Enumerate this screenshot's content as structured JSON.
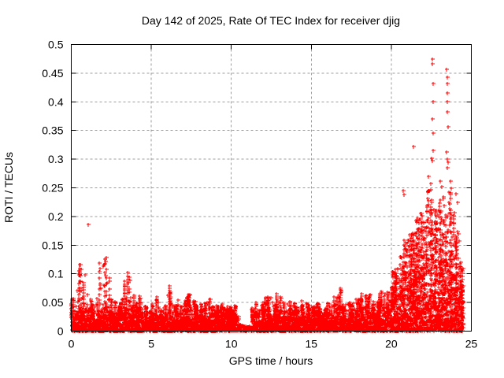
{
  "window": {
    "background": "#ffffff"
  },
  "chart_data": {
    "type": "scatter",
    "title": "Day 142 of 2025, Rate Of TEC Index for receiver djig",
    "xlabel": "GPS time / hours",
    "ylabel": "ROTI / TECUs",
    "xlim": [
      0,
      25
    ],
    "ylim": [
      0,
      0.5
    ],
    "xticks": {
      "values": [
        0,
        5,
        10,
        15,
        20,
        25
      ],
      "labels": [
        "0",
        "5",
        "10",
        "15",
        "20",
        "25"
      ]
    },
    "yticks": {
      "values": [
        0,
        0.05,
        0.1,
        0.15,
        0.2,
        0.25,
        0.3,
        0.35,
        0.4,
        0.45,
        0.5
      ],
      "labels": [
        "0",
        "0.05",
        "0.1",
        "0.15",
        "0.2",
        "0.25",
        "0.3",
        "0.35",
        "0.4",
        "0.45",
        "0.5"
      ]
    },
    "grid": {
      "visible": true,
      "style": "dashed",
      "color": "#9c9c9c"
    },
    "legend": null,
    "series": [
      {
        "name": "ROTI",
        "marker": "plus",
        "color": "#ff0000",
        "hours_range": [
          0,
          24.5
        ]
      }
    ],
    "envelope": {
      "note": "Dense scatter summarized per 0.25-hour bin: band_top = top of solid dense band (TECUs), spike_top = max of spike columns in bin",
      "bin_hours": 0.25,
      "band_top": [
        0.03,
        0.035,
        0.04,
        0.04,
        0.035,
        0.03,
        0.03,
        0.04,
        0.04,
        0.035,
        0.03,
        0.03,
        0.035,
        0.035,
        0.04,
        0.035,
        0.03,
        0.035,
        0.03,
        0.025,
        0.03,
        0.03,
        0.025,
        0.03,
        0.035,
        0.03,
        0.035,
        0.03,
        0.035,
        0.04,
        0.035,
        0.03,
        0.035,
        0.03,
        0.035,
        0.03,
        0.03,
        0.035,
        0.03,
        0.03,
        0.03,
        0.02,
        0.008,
        0.006,
        0.006,
        0.02,
        0.03,
        0.035,
        0.035,
        0.035,
        0.03,
        0.035,
        0.035,
        0.03,
        0.035,
        0.03,
        0.03,
        0.035,
        0.03,
        0.03,
        0.03,
        0.03,
        0.025,
        0.03,
        0.03,
        0.035,
        0.035,
        0.04,
        0.035,
        0.03,
        0.03,
        0.035,
        0.035,
        0.04,
        0.04,
        0.035,
        0.04,
        0.045,
        0.04,
        0.045,
        0.05,
        0.055,
        0.06,
        0.07,
        0.08,
        0.08,
        0.09,
        0.09,
        0.1,
        0.1,
        0.1,
        0.1,
        0.1,
        0.1,
        0.1,
        0.09,
        0.07,
        0.05
      ],
      "spike_top": [
        0.06,
        0.105,
        0.12,
        0.1,
        0.065,
        0.05,
        0.06,
        0.125,
        0.13,
        0.095,
        0.06,
        0.05,
        0.06,
        0.09,
        0.105,
        0.07,
        0.05,
        0.065,
        0.045,
        0.04,
        0.055,
        0.06,
        0.04,
        0.05,
        0.08,
        0.05,
        0.055,
        0.05,
        0.06,
        0.065,
        0.055,
        0.05,
        0.055,
        0.05,
        0.06,
        0.045,
        0.045,
        0.05,
        0.045,
        0.045,
        0.045,
        0.03,
        0.012,
        0.01,
        0.01,
        0.04,
        0.055,
        0.06,
        0.065,
        0.065,
        0.05,
        0.07,
        0.06,
        0.05,
        0.055,
        0.05,
        0.045,
        0.055,
        0.05,
        0.045,
        0.045,
        0.05,
        0.04,
        0.045,
        0.05,
        0.06,
        0.065,
        0.08,
        0.055,
        0.05,
        0.05,
        0.06,
        0.065,
        0.07,
        0.065,
        0.055,
        0.06,
        0.07,
        0.065,
        0.08,
        0.105,
        0.11,
        0.13,
        0.16,
        0.17,
        0.18,
        0.2,
        0.21,
        0.22,
        0.25,
        0.23,
        0.22,
        0.24,
        0.22,
        0.25,
        0.21,
        0.18,
        0.12
      ]
    },
    "outliers": [
      [
        1.07,
        0.186
      ],
      [
        20.75,
        0.245
      ],
      [
        20.8,
        0.238
      ],
      [
        21.4,
        0.322
      ],
      [
        22.3,
        0.27
      ],
      [
        22.35,
        0.245
      ],
      [
        22.45,
        0.258
      ],
      [
        22.55,
        0.475
      ],
      [
        22.58,
        0.467
      ],
      [
        22.6,
        0.432
      ],
      [
        22.62,
        0.4
      ],
      [
        22.58,
        0.37
      ],
      [
        22.63,
        0.345
      ],
      [
        22.6,
        0.315
      ],
      [
        22.5,
        0.302
      ],
      [
        22.55,
        0.298
      ],
      [
        23.05,
        0.262
      ],
      [
        23.15,
        0.252
      ],
      [
        23.45,
        0.457
      ],
      [
        23.48,
        0.443
      ],
      [
        23.5,
        0.432
      ],
      [
        23.5,
        0.415
      ],
      [
        23.52,
        0.4
      ],
      [
        23.48,
        0.382
      ],
      [
        23.53,
        0.356
      ],
      [
        23.45,
        0.312
      ],
      [
        23.5,
        0.3
      ],
      [
        23.55,
        0.295
      ],
      [
        23.5,
        0.285
      ],
      [
        23.7,
        0.262
      ],
      [
        23.75,
        0.25
      ],
      [
        24.05,
        0.24
      ],
      [
        24.15,
        0.225
      ]
    ],
    "axis_color": "#000000",
    "text_color": "#000000"
  }
}
